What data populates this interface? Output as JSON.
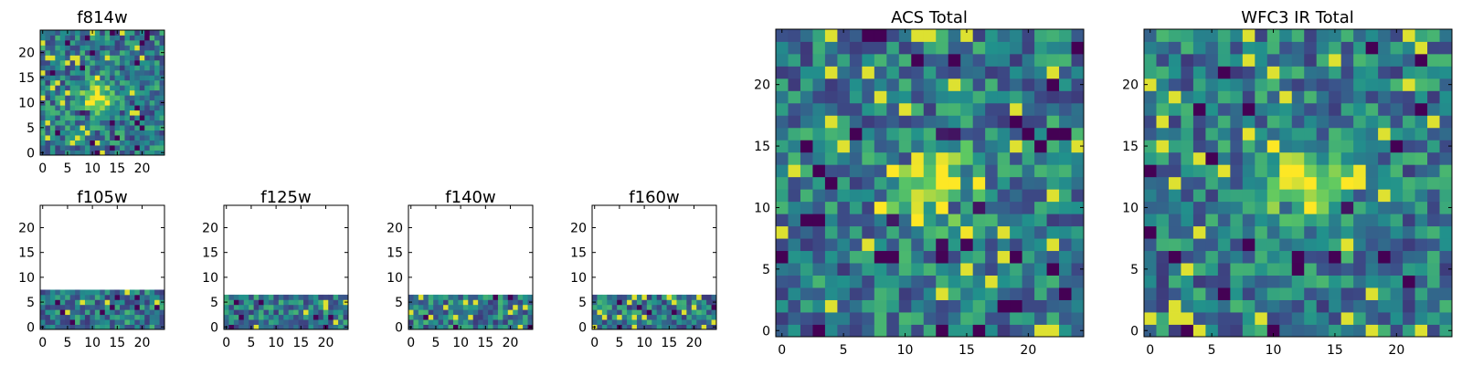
{
  "figure": {
    "title": "",
    "colormap": "viridis",
    "colormap_stops": [
      "#440154",
      "#3b528b",
      "#21918c",
      "#5ec962",
      "#fde725"
    ]
  },
  "chart_data": [
    {
      "type": "heatmap",
      "title": "f814w",
      "grid_size": [
        25,
        25
      ],
      "filled_rows": [
        0,
        24
      ],
      "xlim": [
        0,
        24
      ],
      "ylim": [
        0,
        24
      ],
      "xticks": [
        0,
        5,
        10,
        15,
        20
      ],
      "yticks": [
        0,
        5,
        10,
        15,
        20
      ],
      "source_center": [
        11,
        11
      ],
      "seed": 11
    },
    {
      "type": "heatmap",
      "title": "f105w",
      "grid_size": [
        25,
        25
      ],
      "filled_rows": [
        0,
        7
      ],
      "xlim": [
        0,
        24
      ],
      "ylim": [
        0,
        24
      ],
      "xticks": [
        0,
        5,
        10,
        15,
        20
      ],
      "yticks": [
        0,
        5,
        10,
        15,
        20
      ],
      "seed": 23
    },
    {
      "type": "heatmap",
      "title": "f125w",
      "grid_size": [
        25,
        25
      ],
      "filled_rows": [
        0,
        6
      ],
      "xlim": [
        0,
        24
      ],
      "ylim": [
        0,
        24
      ],
      "xticks": [
        0,
        5,
        10,
        15,
        20
      ],
      "yticks": [
        0,
        5,
        10,
        15,
        20
      ],
      "seed": 37
    },
    {
      "type": "heatmap",
      "title": "f140w",
      "grid_size": [
        25,
        25
      ],
      "filled_rows": [
        0,
        6
      ],
      "xlim": [
        0,
        24
      ],
      "ylim": [
        0,
        24
      ],
      "xticks": [
        0,
        5,
        10,
        15,
        20
      ],
      "yticks": [
        0,
        5,
        10,
        15,
        20
      ],
      "seed": 41
    },
    {
      "type": "heatmap",
      "title": "f160w",
      "grid_size": [
        25,
        25
      ],
      "filled_rows": [
        0,
        6
      ],
      "xlim": [
        0,
        24
      ],
      "ylim": [
        0,
        24
      ],
      "xticks": [
        0,
        5,
        10,
        15,
        20
      ],
      "yticks": [
        0,
        5,
        10,
        15,
        20
      ],
      "seed": 53
    },
    {
      "type": "heatmap",
      "title": "ACS Total",
      "grid_size": [
        25,
        25
      ],
      "filled_rows": [
        0,
        24
      ],
      "xlim": [
        0,
        24
      ],
      "ylim": [
        0,
        24
      ],
      "xticks": [
        0,
        5,
        10,
        15,
        20
      ],
      "yticks": [
        0,
        5,
        10,
        15,
        20
      ],
      "source_center": [
        12,
        12
      ],
      "seed": 67
    },
    {
      "type": "heatmap",
      "title": "WFC3 IR Total",
      "grid_size": [
        25,
        25
      ],
      "filled_rows": [
        0,
        24
      ],
      "xlim": [
        0,
        24
      ],
      "ylim": [
        0,
        24
      ],
      "xticks": [
        0,
        5,
        10,
        15,
        20
      ],
      "yticks": [
        0,
        5,
        10,
        15,
        20
      ],
      "source_center": [
        12,
        12
      ],
      "seed": 79
    }
  ]
}
